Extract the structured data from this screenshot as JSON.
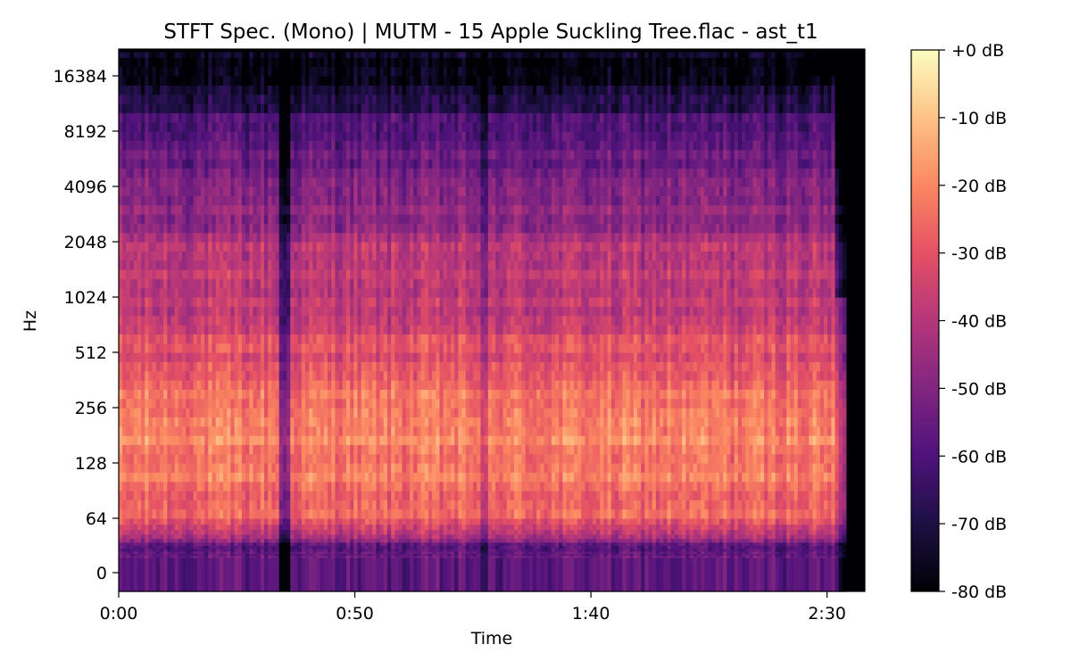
{
  "chart_data": {
    "type": "heatmap",
    "title": "STFT Spec. (Mono) | MUTM - 15 Apple Suckling Tree.flac - ast_t1",
    "xlabel": "Time",
    "ylabel": "Hz",
    "x_ticks": [
      {
        "label": "0:00",
        "seconds": 0
      },
      {
        "label": "0:50",
        "seconds": 50
      },
      {
        "label": "1:40",
        "seconds": 100
      },
      {
        "label": "2:30",
        "seconds": 150
      }
    ],
    "xlim_seconds": [
      0,
      158
    ],
    "y_scale": "symlog (base 2)",
    "y_ticks": [
      {
        "label": "0",
        "hz": 0
      },
      {
        "label": "64",
        "hz": 64
      },
      {
        "label": "128",
        "hz": 128
      },
      {
        "label": "256",
        "hz": 256
      },
      {
        "label": "512",
        "hz": 512
      },
      {
        "label": "1024",
        "hz": 1024
      },
      {
        "label": "2048",
        "hz": 2048
      },
      {
        "label": "4096",
        "hz": 4096
      },
      {
        "label": "8192",
        "hz": 8192
      },
      {
        "label": "16384",
        "hz": 16384
      }
    ],
    "colormap": "magma",
    "colorbar": {
      "range_db": [
        -80,
        0
      ],
      "ticks": [
        "+0 dB",
        "-10 dB",
        "-20 dB",
        "-30 dB",
        "-40 dB",
        "-50 dB",
        "-60 dB",
        "-70 dB",
        "-80 dB"
      ]
    },
    "signal_end_seconds": 154,
    "energy_profile": [
      {
        "hz": 0,
        "db": -55
      },
      {
        "hz": 64,
        "db": -27
      },
      {
        "hz": 128,
        "db": -20
      },
      {
        "hz": 256,
        "db": -22
      },
      {
        "hz": 512,
        "db": -30
      },
      {
        "hz": 1024,
        "db": -38
      },
      {
        "hz": 2048,
        "db": -42
      },
      {
        "hz": 4096,
        "db": -52
      },
      {
        "hz": 8192,
        "db": -58
      },
      {
        "hz": 16384,
        "db": -78
      }
    ]
  }
}
